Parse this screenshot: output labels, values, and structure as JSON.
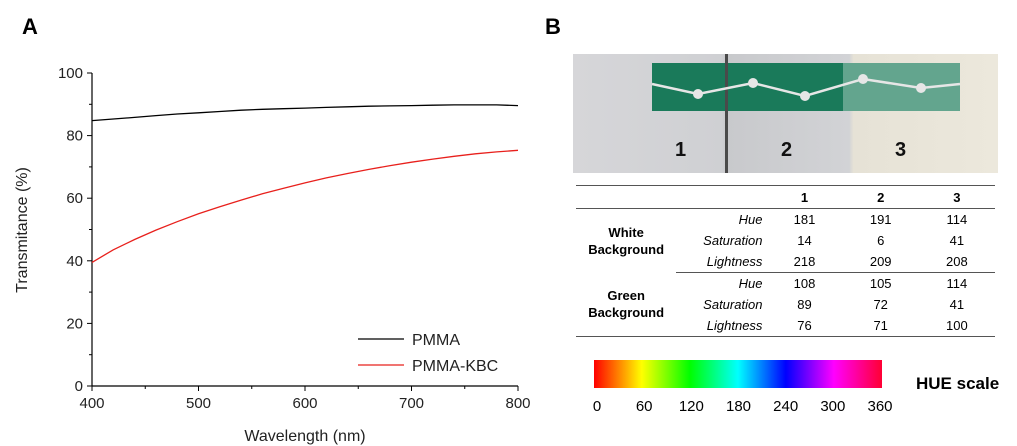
{
  "panels": {
    "a": "A",
    "b": "B"
  },
  "chart_data": {
    "type": "line",
    "xlabel": "Wavelength (nm)",
    "ylabel": "Transmitance (%)",
    "xlim": [
      400,
      800
    ],
    "ylim": [
      0,
      100
    ],
    "xticks": [
      "400",
      "500",
      "600",
      "700",
      "800"
    ],
    "yticks": [
      "0",
      "20",
      "40",
      "60",
      "80",
      "100"
    ],
    "legend_position": "bottom-right",
    "grid": false,
    "series": [
      {
        "name": "PMMA",
        "color": "#000000",
        "x": [
          400,
          420,
          440,
          460,
          480,
          500,
          520,
          540,
          560,
          580,
          600,
          620,
          640,
          660,
          680,
          700,
          720,
          740,
          760,
          780,
          800
        ],
        "y": [
          84.8,
          85.3,
          85.8,
          86.4,
          86.9,
          87.3,
          87.7,
          88.1,
          88.4,
          88.6,
          88.8,
          89.0,
          89.2,
          89.4,
          89.5,
          89.6,
          89.7,
          89.8,
          89.8,
          89.8,
          89.6
        ]
      },
      {
        "name": "PMMA-KBC",
        "color": "#e8201c",
        "x": [
          400,
          420,
          440,
          460,
          480,
          500,
          520,
          540,
          560,
          580,
          600,
          620,
          640,
          660,
          680,
          700,
          720,
          740,
          760,
          780,
          800
        ],
        "y": [
          39.5,
          43.5,
          46.8,
          49.8,
          52.5,
          55.0,
          57.3,
          59.4,
          61.4,
          63.2,
          64.9,
          66.5,
          67.9,
          69.2,
          70.4,
          71.5,
          72.5,
          73.4,
          74.2,
          74.8,
          75.3
        ]
      }
    ]
  },
  "photo": {
    "labels": [
      "1",
      "2",
      "3"
    ],
    "strip_color": "#1a7a5a"
  },
  "table": {
    "columns": [
      "1",
      "2",
      "3"
    ],
    "groups": [
      {
        "label_line1": "White",
        "label_line2": "Background",
        "rows": [
          {
            "attr": "Hue",
            "values": [
              "181",
              "191",
              "114"
            ]
          },
          {
            "attr": "Saturation",
            "values": [
              "14",
              "6",
              "41"
            ]
          },
          {
            "attr": "Lightness",
            "values": [
              "218",
              "209",
              "208"
            ]
          }
        ]
      },
      {
        "label_line1": "Green",
        "label_line2": "Background",
        "rows": [
          {
            "attr": "Hue",
            "values": [
              "108",
              "105",
              "114"
            ]
          },
          {
            "attr": "Saturation",
            "values": [
              "89",
              "72",
              "41"
            ]
          },
          {
            "attr": "Lightness",
            "values": [
              "76",
              "71",
              "100"
            ]
          }
        ]
      }
    ]
  },
  "hue_scale": {
    "title": "HUE scale",
    "ticks": [
      "0",
      "60",
      "120",
      "180",
      "240",
      "300",
      "360"
    ]
  }
}
